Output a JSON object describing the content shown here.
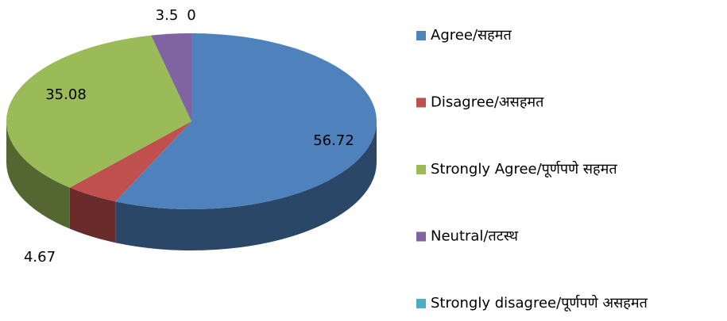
{
  "chart_data": {
    "type": "pie",
    "categories": [
      "Agree/सहमत",
      "Disagree/असहमत",
      "Strongly Agree/पूर्णपणे सहमत",
      "Neutral/तटस्थ",
      "Strongly disagree/पूर्णपणे असहमत"
    ],
    "values": [
      56.72,
      4.67,
      35.08,
      3.5,
      0
    ],
    "colors": [
      "#4f81bd",
      "#c0504d",
      "#9bbb59",
      "#8064a2",
      "#4bacc6"
    ],
    "legend": "right"
  }
}
